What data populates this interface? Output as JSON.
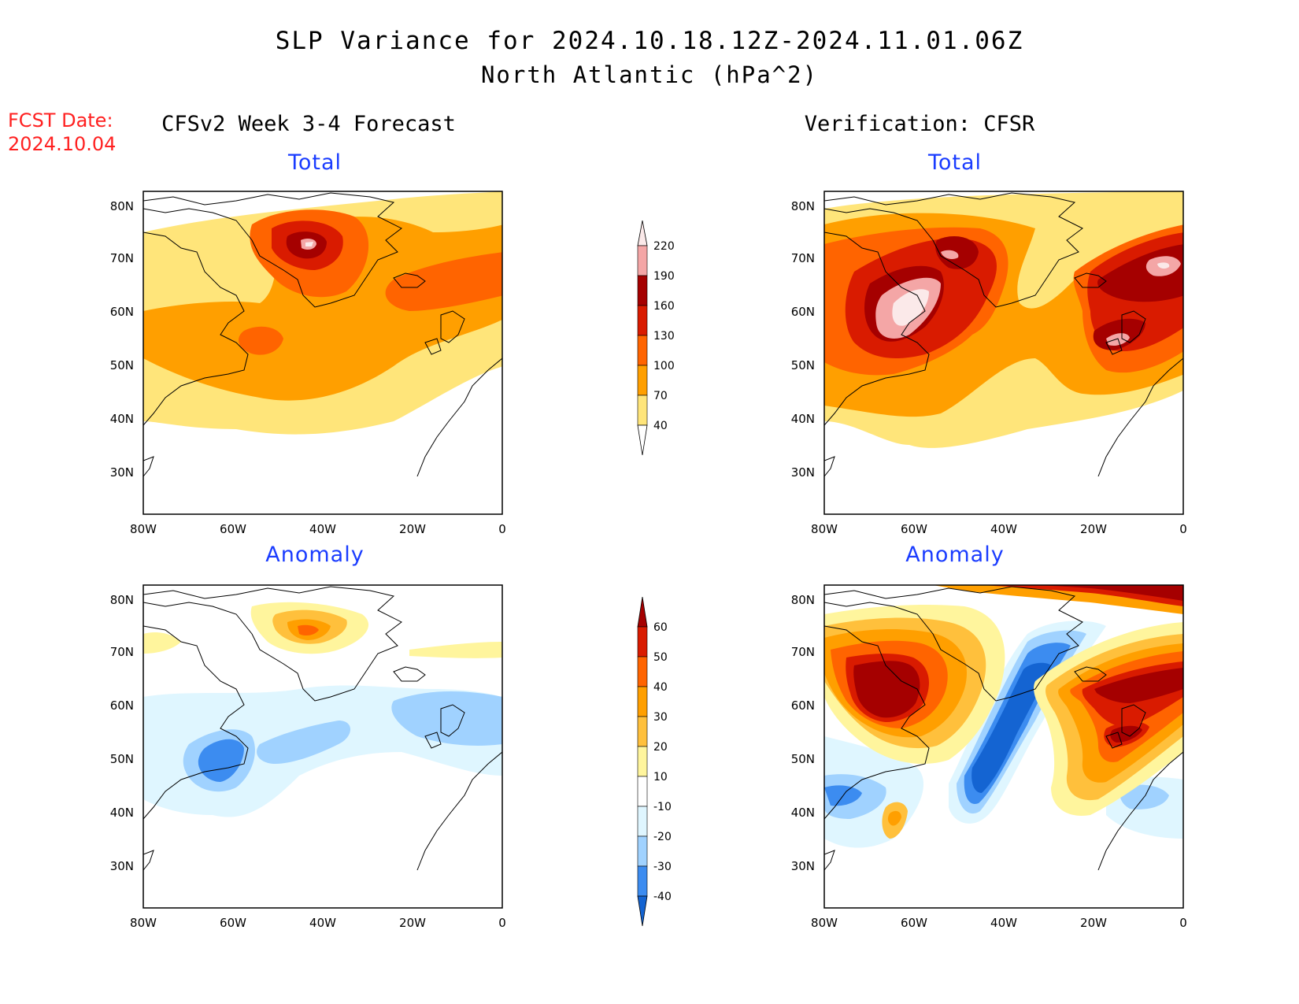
{
  "title": {
    "line1": "SLP Variance for 2024.10.18.12Z-2024.11.01.06Z",
    "line2": "North Atlantic (hPa^2)"
  },
  "fcst_date": {
    "label": "FCST Date:",
    "value": "2024.10.04"
  },
  "columns": {
    "left": "CFSv2 Week 3-4 Forecast",
    "right": "Verification: CFSR"
  },
  "panels": {
    "total_label": "Total",
    "anomaly_label": "Anomaly"
  },
  "axes": {
    "lat_ticks": [
      "80N",
      "70N",
      "60N",
      "50N",
      "40N",
      "30N"
    ],
    "lon_ticks": [
      "80W",
      "60W",
      "40W",
      "20W",
      "0"
    ]
  },
  "colorbars": {
    "total": {
      "levels": [
        "220",
        "190",
        "160",
        "130",
        "100",
        "70",
        "40"
      ],
      "colors": [
        "#fbe9e9",
        "#f4a6a6",
        "#a50000",
        "#d91b00",
        "#ff6400",
        "#ff9f00",
        "#ffe57a"
      ]
    },
    "anomaly": {
      "levels": [
        "60",
        "50",
        "40",
        "30",
        "20",
        "10",
        "-10",
        "-20",
        "-30",
        "-40"
      ],
      "colors": [
        "#a50000",
        "#d91b00",
        "#ff6400",
        "#ff9f00",
        "#ffc03c",
        "#fff59d",
        "#ffffff",
        "#dff6ff",
        "#a0d2ff",
        "#3c8cf0",
        "#1464d2"
      ]
    }
  },
  "colors": {
    "title_text": "#000000",
    "fcst_text": "#ff2020",
    "subtitle_text": "#1a3cff"
  }
}
